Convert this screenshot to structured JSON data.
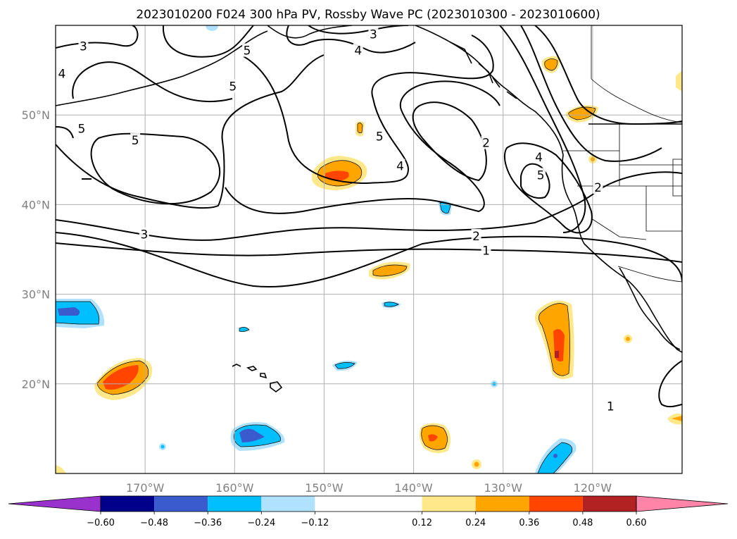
{
  "chart_data": {
    "type": "map-contour",
    "title": "2023010200 F024 300 hPa PV, Rossby Wave PC (2023010300 - 2023010600)",
    "extent": {
      "lon": [
        -180,
        -110
      ],
      "lat": [
        10,
        60
      ]
    },
    "lon_ticks": [
      {
        "value": -170,
        "label": "170°W"
      },
      {
        "value": -160,
        "label": "160°W"
      },
      {
        "value": -150,
        "label": "150°W"
      },
      {
        "value": -140,
        "label": "140°W"
      },
      {
        "value": -130,
        "label": "130°W"
      },
      {
        "value": -120,
        "label": "120°W"
      }
    ],
    "lat_ticks": [
      {
        "value": 50,
        "label": "50°N"
      },
      {
        "value": 40,
        "label": "40°N"
      },
      {
        "value": 30,
        "label": "30°N"
      },
      {
        "value": 20,
        "label": "20°N"
      }
    ],
    "grid": true,
    "colorbar": {
      "orientation": "horizontal",
      "extend": "both",
      "boundaries": [
        -0.6,
        -0.48,
        -0.36,
        -0.24,
        -0.12,
        0.12,
        0.24,
        0.36,
        0.48,
        0.6
      ],
      "labels": [
        "−0.60",
        "−0.48",
        "−0.36",
        "−0.24",
        "−0.12",
        "0.12",
        "0.24",
        "0.36",
        "0.48",
        "0.60"
      ],
      "colors": [
        "#9932cc",
        "#00008b",
        "#3a5bcd",
        "#00bfff",
        "#b0e2ff",
        "#ffffff",
        "#ffe88a",
        "#ffa500",
        "#ff4500",
        "#b22222",
        "#ff85a8"
      ]
    },
    "contour_labels": [
      {
        "text": "3",
        "lon": -176.9,
        "lat": 57.7
      },
      {
        "text": "3",
        "lon": -144.5,
        "lat": 59.0
      },
      {
        "text": "4",
        "lon": -179.3,
        "lat": 54.6
      },
      {
        "text": "4",
        "lon": -146.2,
        "lat": 57.2
      },
      {
        "text": "5",
        "lon": -158.6,
        "lat": 57.2
      },
      {
        "text": "5",
        "lon": -160.2,
        "lat": 53.2
      },
      {
        "text": "5",
        "lon": -177.1,
        "lat": 48.5
      },
      {
        "text": "5",
        "lon": -171.1,
        "lat": 47.2
      },
      {
        "text": "5",
        "lon": -143.8,
        "lat": 47.6
      },
      {
        "text": "4",
        "lon": -141.5,
        "lat": 44.3
      },
      {
        "text": "2",
        "lon": -131.9,
        "lat": 46.9
      },
      {
        "text": "4",
        "lon": -126.0,
        "lat": 45.3
      },
      {
        "text": "5",
        "lon": -125.8,
        "lat": 43.3
      },
      {
        "text": "2",
        "lon": -119.4,
        "lat": 41.9
      },
      {
        "text": "3",
        "lon": -170.1,
        "lat": 36.7
      },
      {
        "text": "2",
        "lon": -133.0,
        "lat": 36.5
      },
      {
        "text": "1",
        "lon": -131.9,
        "lat": 34.9
      },
      {
        "text": "1",
        "lon": -118.0,
        "lat": 17.5
      }
    ]
  }
}
